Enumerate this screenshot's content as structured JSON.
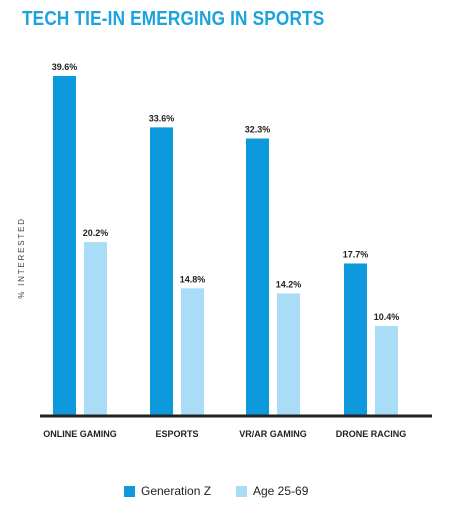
{
  "chart_data": {
    "type": "bar",
    "title": "TECH TIE-IN EMERGING IN SPORTS",
    "ylabel": "% INTERESTED",
    "xlabel": "",
    "categories": [
      "ONLINE GAMING",
      "ESPORTS",
      "VR/AR GAMING",
      "DRONE RACING"
    ],
    "series": [
      {
        "name": "Generation Z",
        "values": [
          39.6,
          33.6,
          32.3,
          17.7
        ],
        "labels": [
          "39.6%",
          "33.6%",
          "32.3%",
          "17.7%"
        ],
        "color": "#0f99dd"
      },
      {
        "name": "Age 25-69",
        "values": [
          20.2,
          14.8,
          14.2,
          10.4
        ],
        "labels": [
          "20.2%",
          "14.8%",
          "14.2%",
          "10.4%"
        ],
        "color": "#a9dcf6"
      }
    ],
    "ylim": [
      0,
      40
    ],
    "grid": false,
    "legend_position": "bottom"
  }
}
